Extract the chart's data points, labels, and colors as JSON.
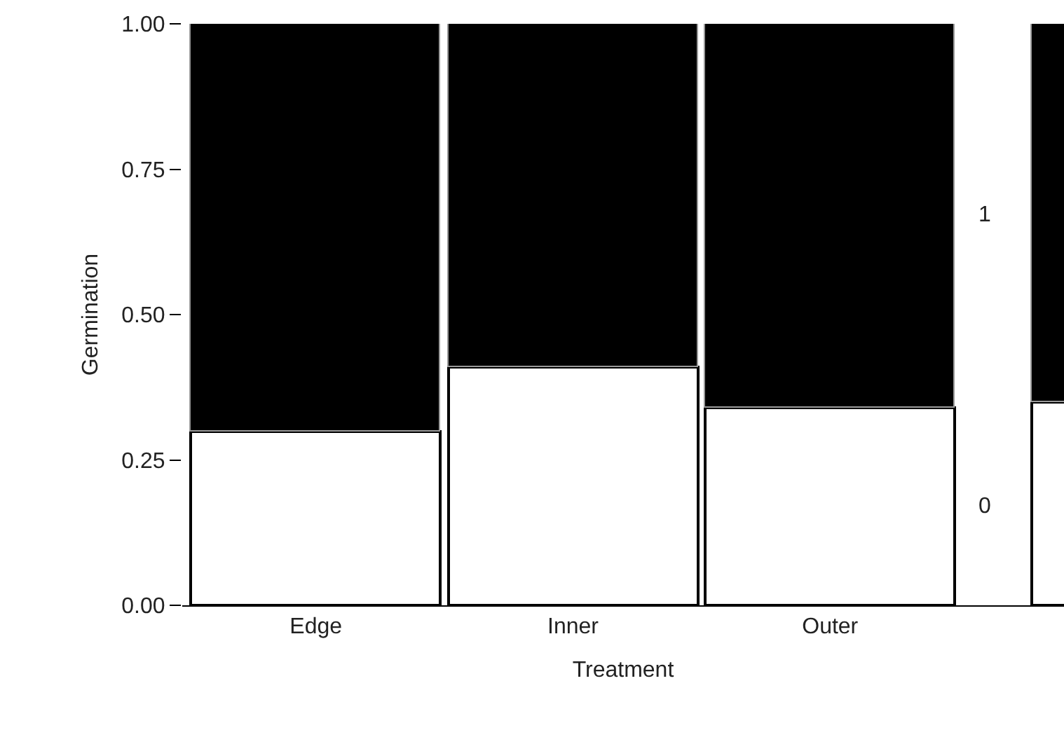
{
  "chart_data": {
    "type": "bar",
    "stacked": true,
    "xlabel": "Treatment",
    "ylabel": "Germination",
    "categories": [
      "Edge",
      "Inner",
      "Outer",
      null
    ],
    "series": [
      {
        "name": "0",
        "color": "#ffffff",
        "values": [
          0.3,
          0.41,
          0.34,
          0.35
        ]
      },
      {
        "name": "1",
        "color": "#000000",
        "values": [
          0.7,
          0.59,
          0.66,
          0.65
        ]
      }
    ],
    "ylim": [
      0,
      1
    ],
    "yticks": [
      {
        "value": 0,
        "label": "0.00"
      },
      {
        "value": 0.25,
        "label": "0.25"
      },
      {
        "value": 0.5,
        "label": "0.50"
      },
      {
        "value": 0.75,
        "label": "0.75"
      },
      {
        "value": 1,
        "label": "1.00"
      }
    ],
    "grid": false,
    "legend": false
  }
}
